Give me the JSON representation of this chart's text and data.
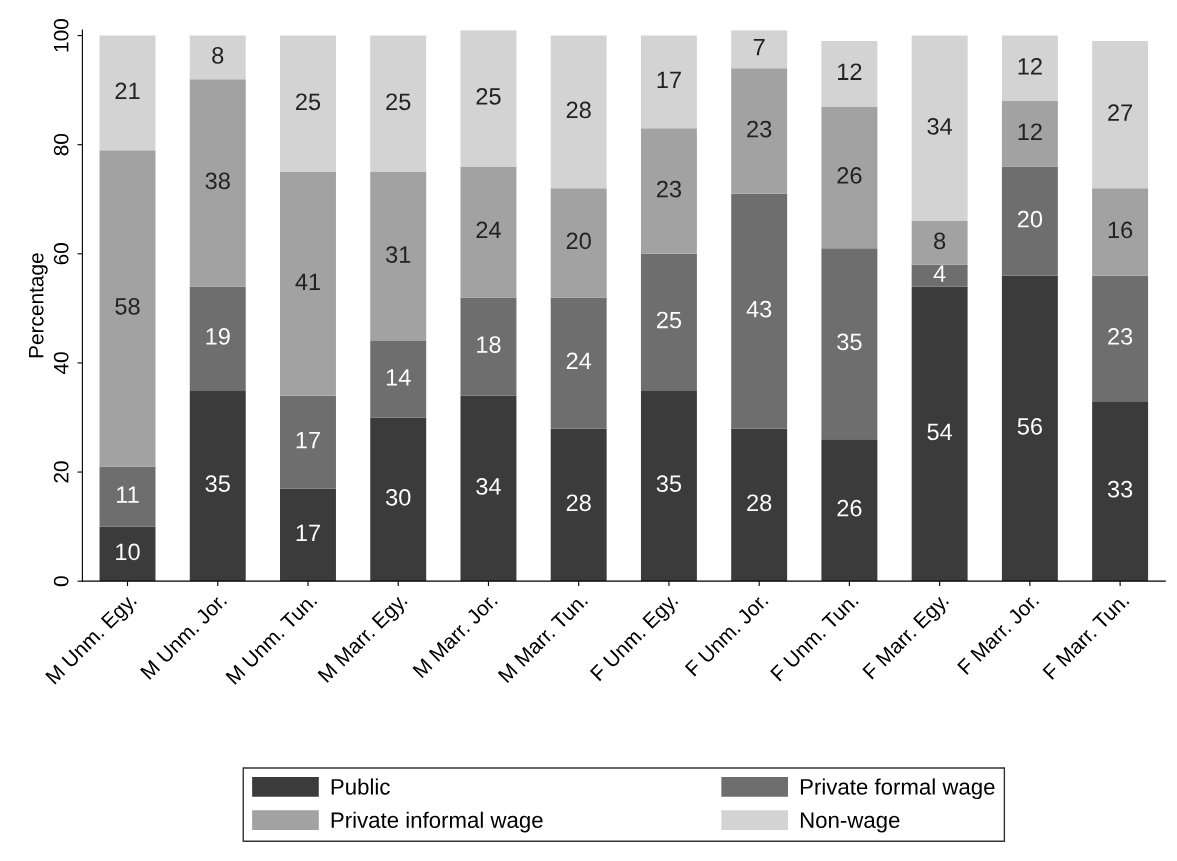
{
  "chart_data": {
    "type": "bar",
    "stacked": true,
    "ylabel": "Percentage",
    "categories": [
      "M Unm. Egy.",
      "M Unm. Jor.",
      "M Unm. Tun.",
      "M Marr. Egy.",
      "M Marr. Jor.",
      "M Marr. Tun.",
      "F Unm. Egy.",
      "F Unm. Jor.",
      "F Unm. Tun.",
      "F Marr. Egy.",
      "F Marr. Jor.",
      "F Marr. Tun."
    ],
    "series": [
      {
        "name": "Public",
        "color": "#3b3b3b",
        "values": [
          10,
          35,
          17,
          30,
          34,
          28,
          35,
          28,
          26,
          54,
          56,
          33
        ]
      },
      {
        "name": "Private formal wage",
        "color": "#6e6e6e",
        "values": [
          11,
          19,
          17,
          14,
          18,
          24,
          25,
          43,
          35,
          4,
          20,
          23
        ]
      },
      {
        "name": "Private informal wage",
        "color": "#a2a2a2",
        "values": [
          58,
          38,
          41,
          31,
          24,
          20,
          23,
          23,
          26,
          8,
          12,
          16
        ]
      },
      {
        "name": "Non-wage",
        "color": "#d3d3d3",
        "values": [
          21,
          8,
          25,
          25,
          25,
          28,
          17,
          7,
          12,
          34,
          12,
          27
        ]
      }
    ],
    "ylim": [
      0,
      101
    ],
    "yticks": [
      0,
      20,
      40,
      60,
      80,
      100
    ],
    "data_labels": true,
    "grid": false,
    "legend": "bottom"
  }
}
